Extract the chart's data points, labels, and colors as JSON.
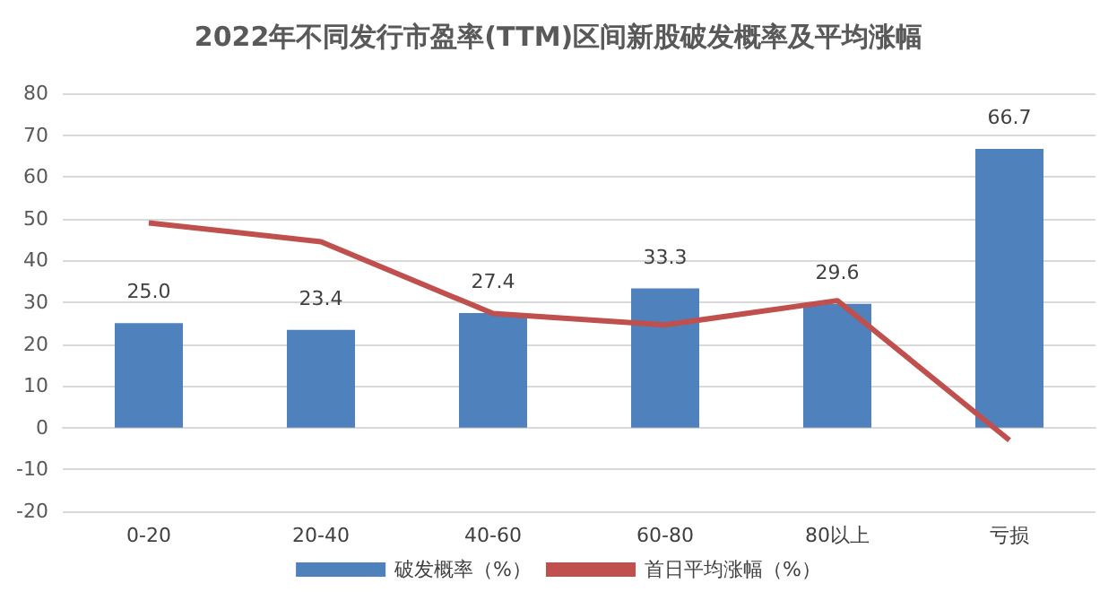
{
  "chart_data": {
    "type": "bar",
    "title": "2022年不同发行市盈率(TTM)区间新股破发概率及平均涨幅",
    "categories": [
      "0-20",
      "20-40",
      "40-60",
      "60-80",
      "80以上",
      "亏损"
    ],
    "series": [
      {
        "name": "破发概率（%）",
        "color": "#4f81bd",
        "values": [
          25.0,
          23.4,
          27.4,
          33.3,
          29.6,
          66.7
        ],
        "value_labels": [
          "25.0",
          "23.4",
          "27.4",
          "33.3",
          "29.6",
          "66.7"
        ]
      },
      {
        "name": "首日平均涨幅（%）",
        "type": "line",
        "color": "#c0504d",
        "values": [
          49,
          44.5,
          27.3,
          24.6,
          30.4,
          -3
        ]
      }
    ],
    "ylim": [
      -20,
      80
    ],
    "yticks": [
      -20,
      -10,
      0,
      10,
      20,
      30,
      40,
      50,
      60,
      70,
      80
    ],
    "grid": "y",
    "legend": "bottom",
    "marker": "none"
  }
}
